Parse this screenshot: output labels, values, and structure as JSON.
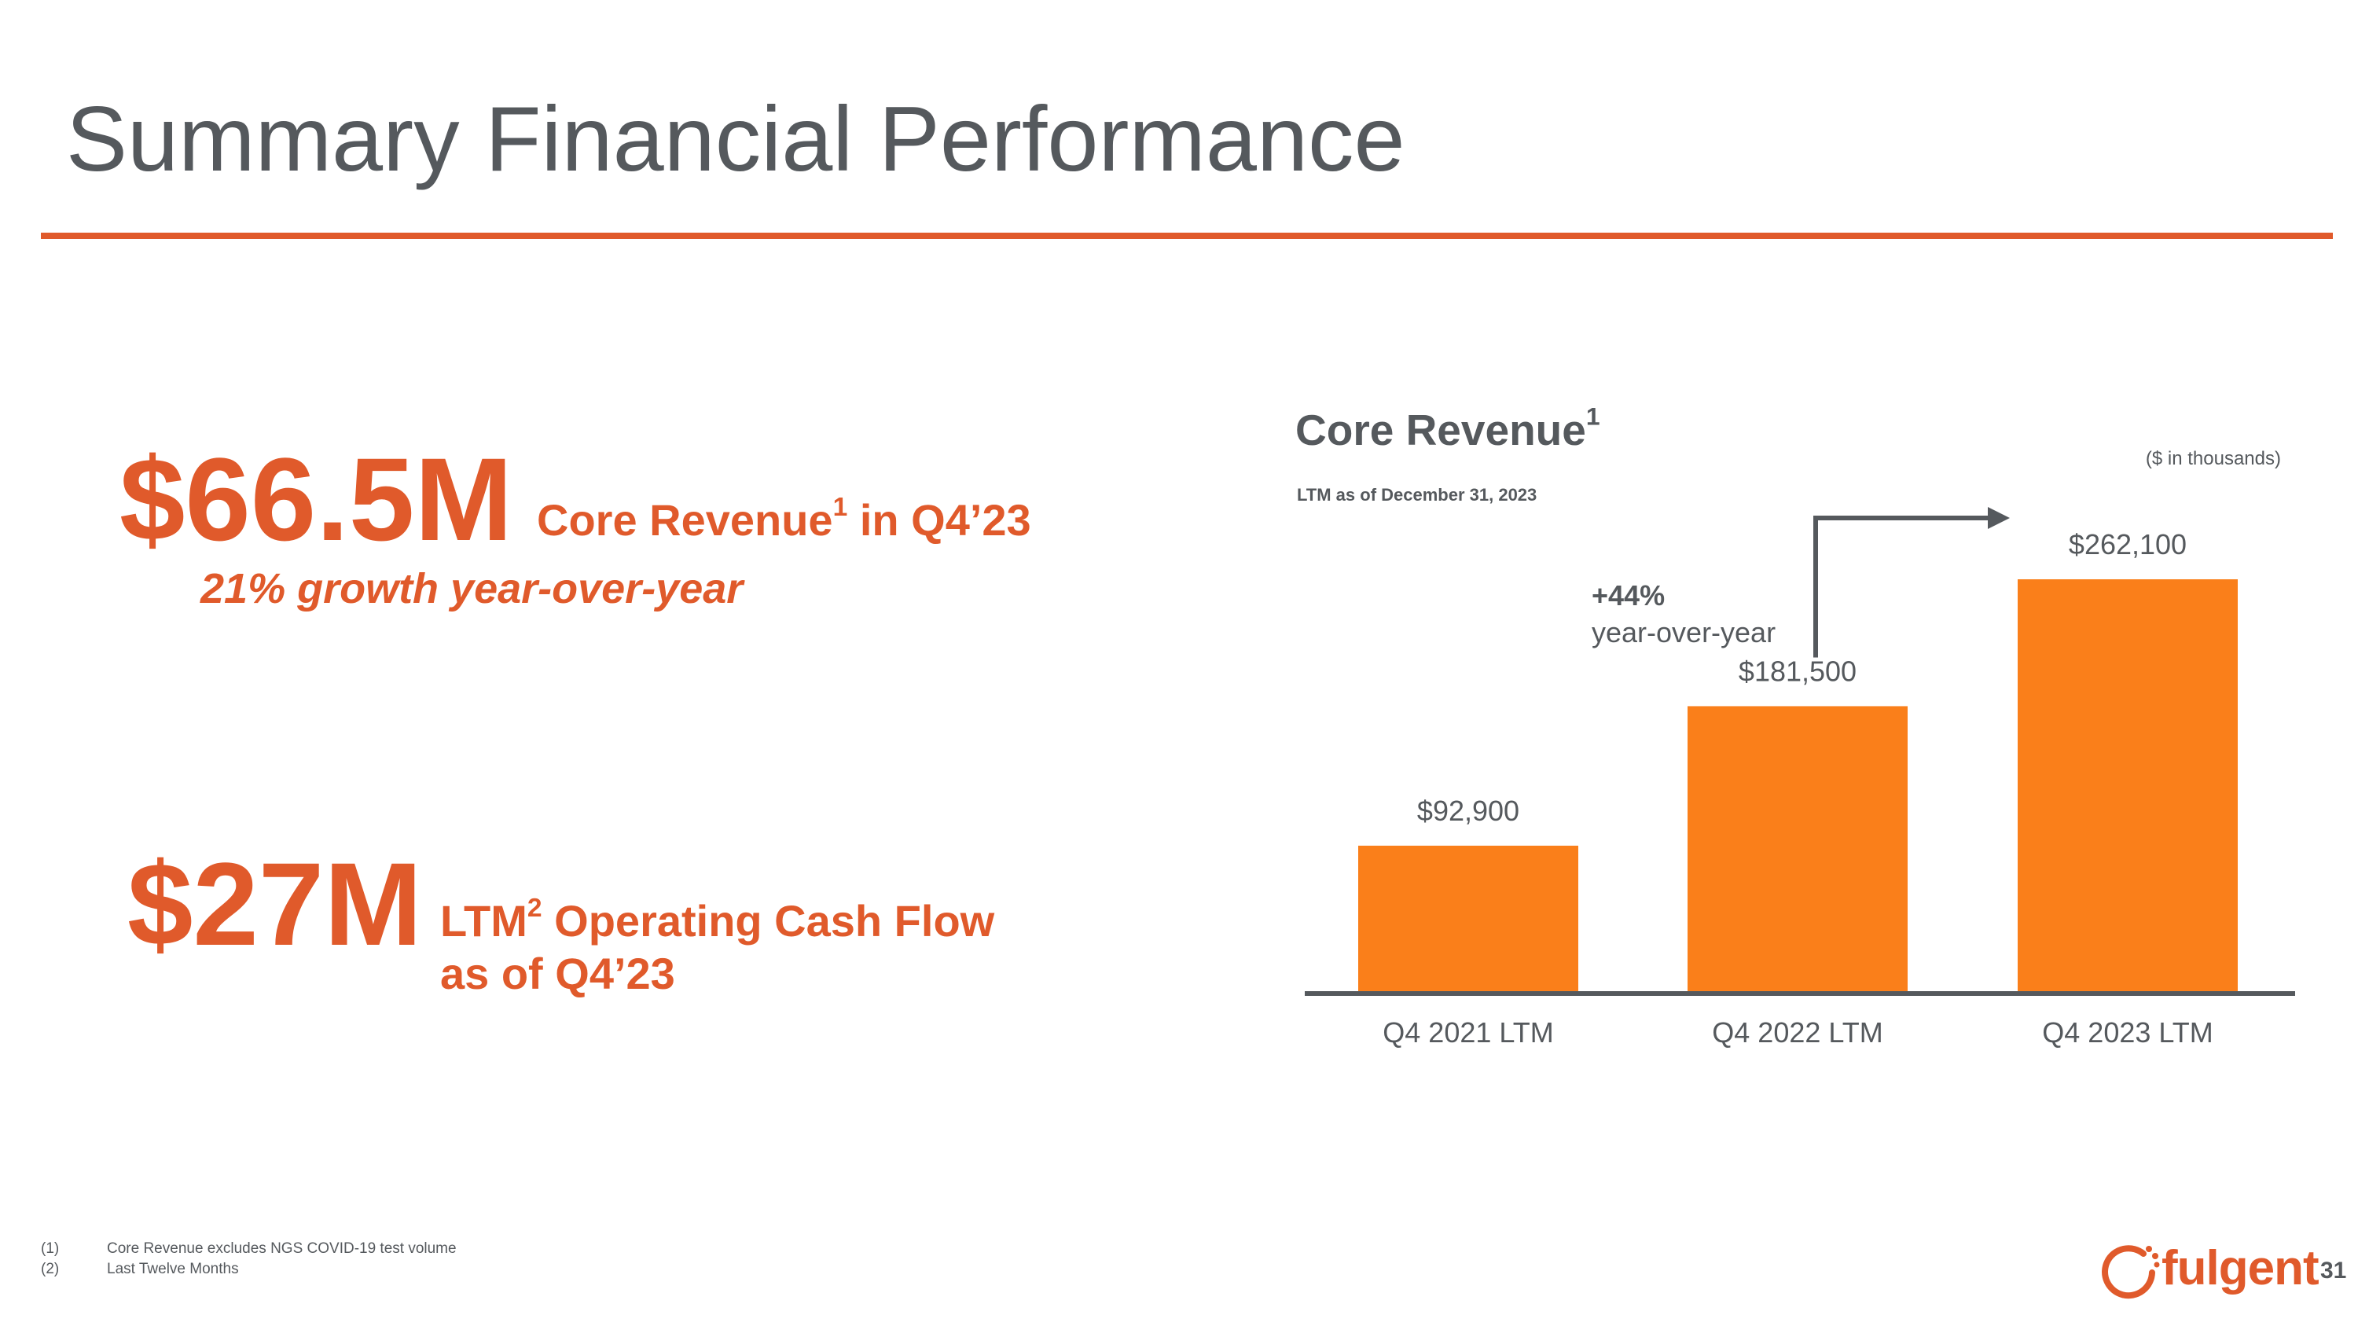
{
  "slide": {
    "title": "Summary Financial Performance",
    "accent_color": "#e05a2b",
    "text_color": "#55595d",
    "page_number": "31"
  },
  "kpis": [
    {
      "value": "$66.5M",
      "description": "Core Revenue",
      "sup": "1",
      "description_suffix": " in Q4’23",
      "subtext": "21% growth year-over-year"
    },
    {
      "value": "$27M",
      "description_prefix": "LTM",
      "sup": "2",
      "description": " Operating Cash Flow",
      "description_line2": "as of Q4’23"
    }
  ],
  "chart_data": {
    "type": "bar",
    "title": "Core Revenue",
    "title_sup": "1",
    "subtitle": "LTM as of December 31, 2023",
    "units_note": "($ in thousands)",
    "categories": [
      "Q4 2021 LTM",
      "Q4 2022 LTM",
      "Q4 2023 LTM"
    ],
    "values": [
      92900,
      181500,
      262100
    ],
    "data_labels": [
      "$92,900",
      "$181,500",
      "$262,100"
    ],
    "ylim": [
      0,
      262100
    ],
    "bar_color": "#fa7f1a",
    "axis_color": "#55595d",
    "annotation": {
      "value": "+44%",
      "text": "year-over-year",
      "from_category": "Q4 2022 LTM",
      "to_category": "Q4 2023 LTM"
    }
  },
  "footnotes": [
    {
      "num": "(1)",
      "text": "Core Revenue excludes NGS COVID-19 test volume"
    },
    {
      "num": "(2)",
      "text": "Last Twelve Months"
    }
  ],
  "logo": {
    "text": "fulgent",
    "icon": "fulgent-ring-logo-icon"
  }
}
